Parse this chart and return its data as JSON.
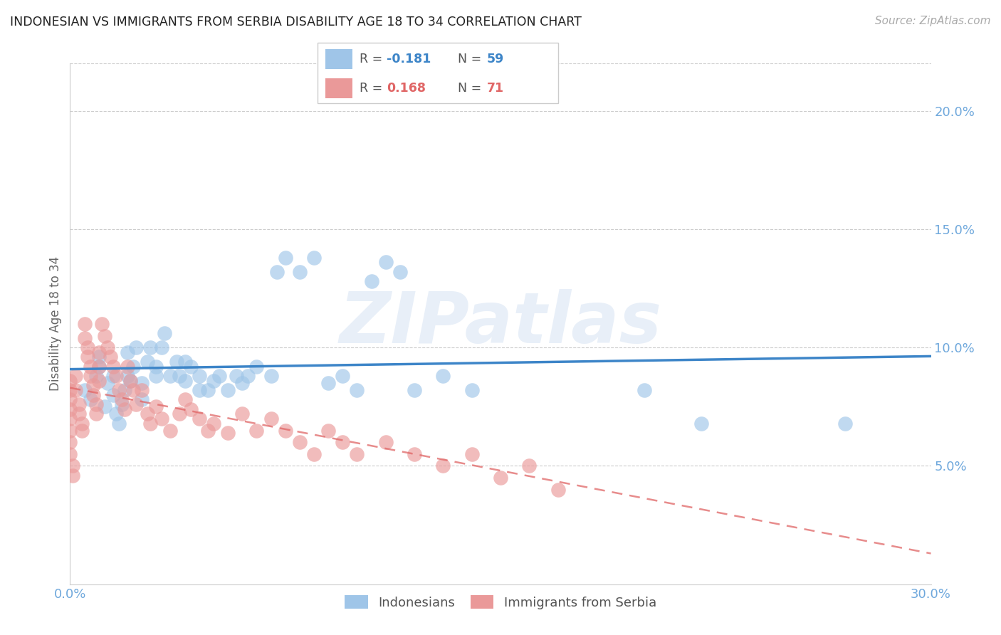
{
  "title": "INDONESIAN VS IMMIGRANTS FROM SERBIA DISABILITY AGE 18 TO 34 CORRELATION CHART",
  "source": "Source: ZipAtlas.com",
  "ylabel": "Disability Age 18 to 34",
  "xlim": [
    0.0,
    0.3
  ],
  "ylim": [
    0.0,
    0.22
  ],
  "x_ticks": [
    0.0,
    0.05,
    0.1,
    0.15,
    0.2,
    0.25,
    0.3
  ],
  "y_ticks_right": [
    0.05,
    0.1,
    0.15,
    0.2
  ],
  "y_tick_labels_right": [
    "5.0%",
    "10.0%",
    "15.0%",
    "20.0%"
  ],
  "blue_color": "#9fc5e8",
  "pink_color": "#ea9999",
  "blue_line_color": "#3d85c8",
  "pink_line_color": "#e06666",
  "pink_dash_color": "#e06666",
  "grid_color": "#cccccc",
  "watermark_text": "ZIPatlas",
  "indonesians_x": [
    0.005,
    0.007,
    0.009,
    0.01,
    0.01,
    0.012,
    0.013,
    0.015,
    0.015,
    0.016,
    0.017,
    0.018,
    0.019,
    0.02,
    0.02,
    0.021,
    0.022,
    0.023,
    0.025,
    0.025,
    0.027,
    0.028,
    0.03,
    0.03,
    0.032,
    0.033,
    0.035,
    0.037,
    0.038,
    0.04,
    0.04,
    0.042,
    0.045,
    0.045,
    0.048,
    0.05,
    0.052,
    0.055,
    0.058,
    0.06,
    0.062,
    0.065,
    0.07,
    0.072,
    0.075,
    0.08,
    0.085,
    0.09,
    0.095,
    0.1,
    0.105,
    0.11,
    0.115,
    0.12,
    0.13,
    0.14,
    0.2,
    0.22,
    0.27
  ],
  "indonesians_y": [
    0.082,
    0.078,
    0.088,
    0.092,
    0.096,
    0.075,
    0.085,
    0.08,
    0.088,
    0.072,
    0.068,
    0.076,
    0.082,
    0.088,
    0.098,
    0.086,
    0.092,
    0.1,
    0.085,
    0.078,
    0.094,
    0.1,
    0.088,
    0.092,
    0.1,
    0.106,
    0.088,
    0.094,
    0.088,
    0.094,
    0.086,
    0.092,
    0.082,
    0.088,
    0.082,
    0.086,
    0.088,
    0.082,
    0.088,
    0.085,
    0.088,
    0.092,
    0.088,
    0.132,
    0.138,
    0.132,
    0.138,
    0.085,
    0.088,
    0.082,
    0.128,
    0.136,
    0.132,
    0.082,
    0.088,
    0.082,
    0.082,
    0.068,
    0.068
  ],
  "serbia_x": [
    0.0,
    0.0,
    0.0,
    0.0,
    0.0,
    0.0,
    0.0,
    0.0,
    0.001,
    0.001,
    0.002,
    0.002,
    0.003,
    0.003,
    0.004,
    0.004,
    0.005,
    0.005,
    0.006,
    0.006,
    0.007,
    0.007,
    0.008,
    0.008,
    0.009,
    0.009,
    0.01,
    0.01,
    0.01,
    0.011,
    0.012,
    0.013,
    0.014,
    0.015,
    0.016,
    0.017,
    0.018,
    0.019,
    0.02,
    0.021,
    0.022,
    0.023,
    0.025,
    0.027,
    0.028,
    0.03,
    0.032,
    0.035,
    0.038,
    0.04,
    0.042,
    0.045,
    0.048,
    0.05,
    0.055,
    0.06,
    0.065,
    0.07,
    0.075,
    0.08,
    0.085,
    0.09,
    0.095,
    0.1,
    0.11,
    0.12,
    0.13,
    0.14,
    0.15,
    0.16,
    0.17
  ],
  "serbia_y": [
    0.086,
    0.082,
    0.078,
    0.074,
    0.07,
    0.065,
    0.06,
    0.055,
    0.05,
    0.046,
    0.088,
    0.082,
    0.076,
    0.072,
    0.068,
    0.065,
    0.11,
    0.104,
    0.1,
    0.096,
    0.092,
    0.088,
    0.084,
    0.08,
    0.076,
    0.072,
    0.098,
    0.092,
    0.086,
    0.11,
    0.105,
    0.1,
    0.096,
    0.092,
    0.088,
    0.082,
    0.078,
    0.074,
    0.092,
    0.086,
    0.082,
    0.076,
    0.082,
    0.072,
    0.068,
    0.075,
    0.07,
    0.065,
    0.072,
    0.078,
    0.074,
    0.07,
    0.065,
    0.068,
    0.064,
    0.072,
    0.065,
    0.07,
    0.065,
    0.06,
    0.055,
    0.065,
    0.06,
    0.055,
    0.06,
    0.055,
    0.05,
    0.055,
    0.045,
    0.05,
    0.04
  ],
  "R_indo": -0.181,
  "N_indo": 59,
  "R_serb": 0.168,
  "N_serb": 71
}
